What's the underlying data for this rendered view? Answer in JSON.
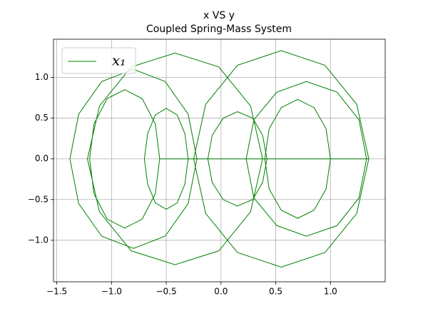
{
  "chart_data": {
    "type": "line",
    "title": "x VS y",
    "subtitle": "Coupled Spring-Mass System",
    "x": [
      -0.22,
      -0.3,
      -0.51,
      -0.8,
      -1.09,
      -1.3,
      -1.38,
      -1.3,
      -1.09,
      -0.8,
      -0.51,
      -0.3,
      -0.22,
      -0.56,
      -0.6,
      -0.72,
      -0.88,
      -1.04,
      -1.16,
      -1.2,
      -1.16,
      -1.04,
      -0.88,
      -0.72,
      -0.6,
      -0.56,
      -0.3,
      -0.33,
      -0.4,
      -0.5,
      -0.6,
      -0.67,
      -0.7,
      -0.67,
      -0.6,
      -0.5,
      -0.4,
      -0.33,
      -0.3,
      0.38,
      0.27,
      -0.02,
      -0.42,
      -0.82,
      -1.11,
      -1.22,
      -1.11,
      -0.82,
      -0.42,
      -0.02,
      0.27,
      0.38,
      0.42,
      0.38,
      0.29,
      0.15,
      0.02,
      -0.08,
      -0.12,
      -0.08,
      0.02,
      0.15,
      0.29,
      0.38,
      0.42,
      1.35,
      1.24,
      0.95,
      0.55,
      0.15,
      -0.14,
      -0.25,
      -0.14,
      0.15,
      0.55,
      0.95,
      1.24,
      1.35,
      1.0,
      0.96,
      0.85,
      0.7,
      0.55,
      0.44,
      0.4,
      0.44,
      0.55,
      0.7,
      0.85,
      0.96,
      1.0,
      1.33,
      1.26,
      1.06,
      0.78,
      0.51,
      0.3,
      0.23,
      0.3,
      0.51,
      0.78,
      1.06,
      1.26,
      1.33
    ],
    "series": [
      {
        "name": "x₁",
        "color": "#008000",
        "values": [
          0,
          0.55,
          0.95,
          1.1,
          0.95,
          0.55,
          0,
          -0.55,
          -0.95,
          -1.1,
          -0.95,
          -0.55,
          0,
          0,
          0.43,
          0.74,
          0.85,
          0.74,
          0.43,
          0,
          -0.43,
          -0.74,
          -0.85,
          -0.74,
          -0.43,
          0,
          0,
          0.31,
          0.54,
          0.62,
          0.54,
          0.31,
          0,
          -0.31,
          -0.54,
          -0.62,
          -0.54,
          -0.31,
          0,
          0,
          0.65,
          1.13,
          1.3,
          1.13,
          0.65,
          0,
          -0.65,
          -1.13,
          -1.3,
          -1.13,
          -0.65,
          0,
          0,
          0.29,
          0.5,
          0.58,
          0.5,
          0.29,
          0,
          -0.29,
          -0.5,
          -0.58,
          -0.5,
          -0.29,
          0,
          0,
          0.67,
          1.15,
          1.33,
          1.15,
          0.67,
          0,
          -0.67,
          -1.15,
          -1.33,
          -1.15,
          -0.67,
          0,
          0,
          0.37,
          0.63,
          0.73,
          0.63,
          0.37,
          0,
          -0.37,
          -0.63,
          -0.73,
          -0.63,
          -0.37,
          0,
          0,
          0.48,
          0.82,
          0.95,
          0.82,
          0.48,
          0,
          -0.48,
          -0.82,
          -0.95,
          -0.82,
          -0.48,
          0
        ]
      }
    ],
    "xlim": [
      -1.53,
      1.5
    ],
    "ylim": [
      -1.51,
      1.47
    ],
    "xticks": [
      {
        "value": -1.5,
        "label": "−1.5"
      },
      {
        "value": -1.0,
        "label": "−1.0"
      },
      {
        "value": -0.5,
        "label": "−0.5"
      },
      {
        "value": 0,
        "label": "0.0"
      },
      {
        "value": 0.5,
        "label": "0.5"
      },
      {
        "value": 1.0,
        "label": "1.0"
      }
    ],
    "yticks": [
      {
        "value": -1.0,
        "label": "−1.0"
      },
      {
        "value": -0.5,
        "label": "−0.5"
      },
      {
        "value": 0,
        "label": "0.0"
      },
      {
        "value": 0.5,
        "label": "0.5"
      },
      {
        "value": 1.0,
        "label": "1.0"
      }
    ],
    "grid": true,
    "legend": "upper left"
  }
}
